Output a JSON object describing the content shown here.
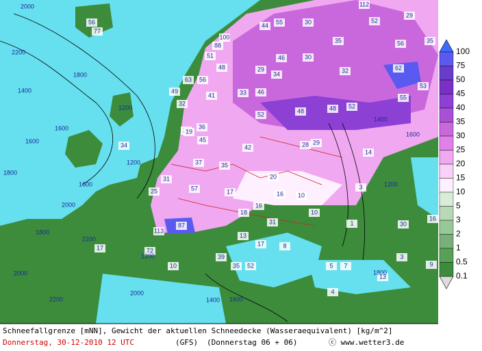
{
  "map_labels": [
    "2000",
    "56",
    "77",
    "2200",
    "1800",
    "1400",
    "1600",
    "1600",
    "1200",
    "34",
    "1200",
    "1600",
    "2000",
    "1800",
    "2200",
    "17",
    "2000",
    "2200",
    "1800",
    "100",
    "88",
    "51",
    "48",
    "49",
    "63",
    "56",
    "41",
    "32",
    "28",
    "36",
    "45",
    "19",
    "37",
    "31",
    "25",
    "35",
    "57",
    "42",
    "33",
    "46",
    "52",
    "48",
    "48",
    "52",
    "29",
    "34",
    "46",
    "30",
    "44",
    "55",
    "30",
    "112",
    "29",
    "52",
    "35",
    "56",
    "35",
    "62",
    "53",
    "55",
    "32",
    "28",
    "29",
    "20",
    "16",
    "10",
    "17",
    "16",
    "18",
    "10",
    "31",
    "87",
    "113",
    "72",
    "13",
    "17",
    "8",
    "39",
    "35",
    "52",
    "10",
    "14",
    "1",
    "3",
    "30",
    "16",
    "13",
    "5",
    "7",
    "3",
    "9",
    "4",
    "1400",
    "1200",
    "1600",
    "1800",
    "1400",
    "1600",
    "2000",
    "1200"
  ],
  "legend": {
    "labels": [
      100,
      75,
      50,
      45,
      40,
      35,
      30,
      25,
      20,
      15,
      10,
      5,
      3,
      2,
      1,
      0.5,
      0.1
    ],
    "colors": [
      "#3c6cff",
      "#5a5af0",
      "#6a3ccc",
      "#7a30c8",
      "#8c40d4",
      "#a850d8",
      "#c868dc",
      "#e080e8",
      "#f0a8f0",
      "#f8d0f8",
      "#fff0ff",
      "#d8ecd8",
      "#b8d8b8",
      "#98c898",
      "#78b078",
      "#58a058",
      "#3c8c3c"
    ]
  },
  "caption": {
    "line1": "Schneefallgrenze [mNN], Gewicht der aktuellen Schneedecke (Wasseraequivalent) [kg/m^2]",
    "date": "Donnerstag, 30-12-2010  12 UTC",
    "model": "(GFS)",
    "run": "(Donnerstag 06 + 06)",
    "credit": "ⓒ www.wetter3.de"
  }
}
